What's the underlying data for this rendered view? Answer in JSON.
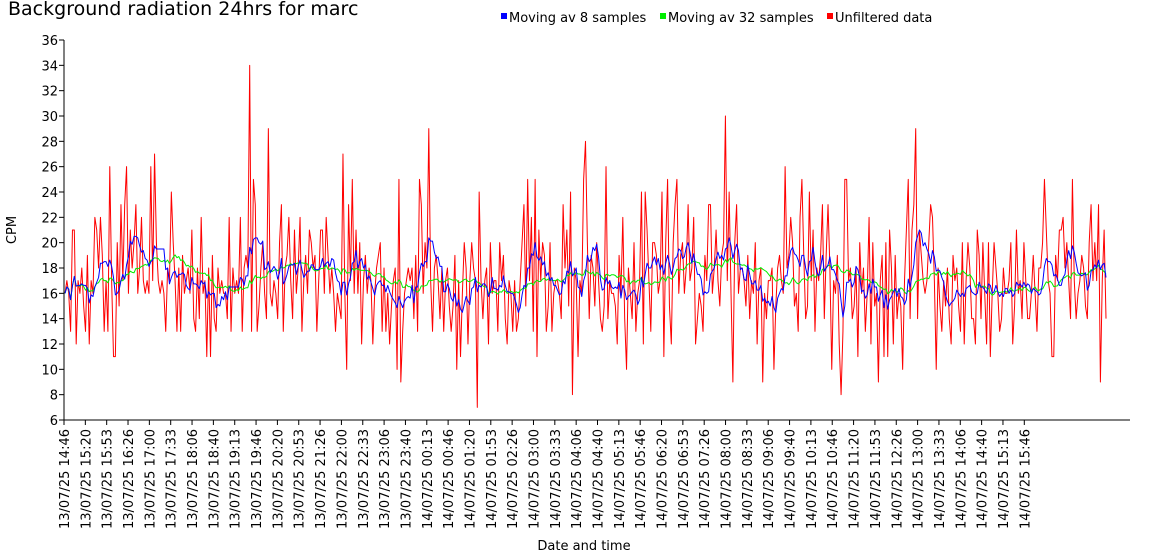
{
  "chart_data": {
    "type": "line",
    "title": "Background radiation 24hrs for marc",
    "xlabel": "Date and time",
    "ylabel": "CPM",
    "ylim": [
      6,
      36
    ],
    "yticks": [
      6,
      8,
      10,
      12,
      14,
      16,
      18,
      20,
      22,
      24,
      26,
      28,
      30,
      32,
      34,
      36
    ],
    "xticks": [
      "13/07/25 14:46",
      "13/07/25 15:20",
      "13/07/25 15:53",
      "13/07/25 16:26",
      "13/07/25 17:00",
      "13/07/25 17:33",
      "13/07/25 18:06",
      "13/07/25 18:40",
      "13/07/25 19:13",
      "13/07/25 19:46",
      "13/07/25 20:20",
      "13/07/25 20:53",
      "13/07/25 21:26",
      "13/07/25 22:00",
      "13/07/25 22:33",
      "13/07/25 23:06",
      "13/07/25 23:40",
      "14/07/25 00:13",
      "14/07/25 00:46",
      "14/07/25 01:20",
      "14/07/25 01:53",
      "14/07/25 02:26",
      "14/07/25 03:00",
      "14/07/25 03:33",
      "14/07/25 04:06",
      "14/07/25 04:40",
      "14/07/25 05:13",
      "14/07/25 05:46",
      "14/07/25 06:20",
      "14/07/25 06:53",
      "14/07/25 07:26",
      "14/07/25 08:00",
      "14/07/25 08:33",
      "14/07/25 09:06",
      "14/07/25 09:40",
      "14/07/25 10:13",
      "14/07/25 10:46",
      "14/07/25 11:20",
      "14/07/25 11:53",
      "14/07/25 12:26",
      "14/07/25 13:00",
      "14/07/25 13:33",
      "14/07/25 14:06",
      "14/07/25 14:40",
      "14/07/25 15:13",
      "14/07/25 15:46"
    ],
    "legend_position": "top-right",
    "grid": false,
    "series": [
      {
        "name": "Moving av 8 samples",
        "color": "#0000ff",
        "key": "ma8"
      },
      {
        "name": "Moving av 32 samples",
        "color": "#00ee00",
        "key": "ma32"
      },
      {
        "name": "Unfiltered data",
        "color": "#ff0000",
        "key": "raw"
      }
    ],
    "raw_values": [
      16,
      17,
      16,
      13,
      21,
      21,
      12,
      17,
      16,
      18,
      15,
      13,
      19,
      12,
      17,
      16,
      22,
      21,
      18,
      22,
      19,
      13,
      17,
      13,
      26,
      17,
      11,
      11,
      20,
      15,
      23,
      17,
      23,
      26,
      16,
      21,
      18,
      20,
      23,
      16,
      18,
      22,
      17,
      16,
      17,
      16,
      26,
      17,
      27,
      20,
      17,
      16,
      17,
      16,
      13,
      18,
      17,
      24,
      20,
      17,
      13,
      18,
      13,
      19,
      16,
      17,
      18,
      16,
      21,
      14,
      13,
      18,
      14,
      22,
      16,
      17,
      11,
      18,
      11,
      19,
      14,
      13,
      18,
      16,
      17,
      16,
      16,
      14,
      22,
      13,
      18,
      16,
      17,
      16,
      22,
      13,
      18,
      19,
      18,
      34,
      13,
      25,
      23,
      13,
      15,
      18,
      20,
      16,
      14,
      29,
      16,
      15,
      17,
      16,
      14,
      20,
      23,
      13,
      18,
      19,
      22,
      17,
      14,
      21,
      16,
      18,
      22,
      13,
      17,
      19,
      16,
      21,
      20,
      18,
      19,
      13,
      17,
      21,
      21,
      16,
      22,
      19,
      16,
      18,
      16,
      13,
      16,
      15,
      14,
      27,
      16,
      10,
      23,
      17,
      25,
      16,
      21,
      16,
      20,
      12,
      17,
      19,
      16,
      18,
      17,
      12,
      16,
      18,
      19,
      20,
      13,
      18,
      13,
      16,
      12,
      15,
      17,
      18,
      10,
      25,
      9,
      13,
      16,
      17,
      18,
      17,
      18,
      14,
      19,
      13,
      25,
      23,
      16,
      20,
      18,
      29,
      17,
      13,
      18,
      19,
      17,
      14,
      18,
      13,
      17,
      18,
      15,
      13,
      15,
      19,
      10,
      17,
      11,
      16,
      20,
      18,
      12,
      17,
      20,
      18,
      17,
      7,
      24,
      17,
      14,
      17,
      18,
      12,
      20,
      16,
      17,
      17,
      13,
      20,
      17,
      19,
      14,
      12,
      17,
      16,
      13,
      17,
      13,
      14,
      17,
      20,
      23,
      15,
      25,
      17,
      22,
      13,
      25,
      11,
      21,
      17,
      20,
      19,
      13,
      15,
      20,
      13,
      16,
      17,
      17,
      16,
      14,
      23,
      18,
      21,
      15,
      24,
      8,
      18,
      17,
      11,
      17,
      16,
      25,
      28,
      20,
      14,
      19,
      18,
      15,
      20,
      17,
      14,
      13,
      15,
      26,
      14,
      17,
      16,
      16,
      15,
      12,
      19,
      16,
      22,
      14,
      10,
      18,
      16,
      14,
      20,
      13,
      16,
      17,
      24,
      12,
      24,
      21,
      17,
      13,
      20,
      20,
      19,
      16,
      17,
      24,
      11,
      20,
      25,
      15,
      12,
      20,
      23,
      25,
      16,
      19,
      20,
      16,
      18,
      23,
      17,
      18,
      22,
      12,
      14,
      16,
      15,
      13,
      19,
      17,
      23,
      23,
      16,
      18,
      21,
      17,
      15,
      19,
      20,
      30,
      17,
      24,
      16,
      9,
      20,
      23,
      16,
      18,
      18,
      17,
      15,
      19,
      14,
      17,
      16,
      20,
      12,
      17,
      18,
      9,
      16,
      14,
      17,
      17,
      18,
      10,
      15,
      18,
      19,
      17,
      16,
      26,
      18,
      19,
      22,
      20,
      15,
      16,
      13,
      22,
      25,
      19,
      14,
      15,
      24,
      17,
      21,
      13,
      18,
      17,
      19,
      23,
      14,
      19,
      23,
      18,
      10,
      17,
      16,
      19,
      12,
      8,
      13,
      25,
      25,
      17,
      18,
      14,
      15,
      18,
      11,
      20,
      16,
      18,
      13,
      16,
      22,
      12,
      20,
      15,
      16,
      9,
      17,
      19,
      11,
      20,
      11,
      21,
      18,
      12,
      19,
      14,
      16,
      15,
      10,
      17,
      21,
      25,
      14,
      21,
      23,
      29,
      14,
      21,
      19,
      17,
      16,
      17,
      20,
      23,
      22,
      17,
      10,
      18,
      15,
      13,
      17,
      15,
      18,
      14,
      12,
      19,
      17,
      18,
      15,
      13,
      20,
      12,
      17,
      20,
      18,
      14,
      14,
      12,
      21,
      19,
      14,
      20,
      16,
      12,
      20,
      11,
      16,
      20,
      18,
      16,
      13,
      14,
      18,
      16,
      16,
      17,
      20,
      12,
      15,
      21,
      16,
      17,
      14,
      20,
      17,
      14,
      14,
      16,
      19,
      16,
      13,
      18,
      18,
      20,
      25,
      21,
      17,
      16,
      11,
      11,
      19,
      17,
      21,
      21,
      22,
      18,
      20,
      17,
      14,
      25,
      17,
      14,
      16,
      17,
      19,
      18,
      15,
      14,
      20,
      23,
      17,
      20,
      17,
      23,
      9,
      17,
      21,
      14
    ]
  }
}
